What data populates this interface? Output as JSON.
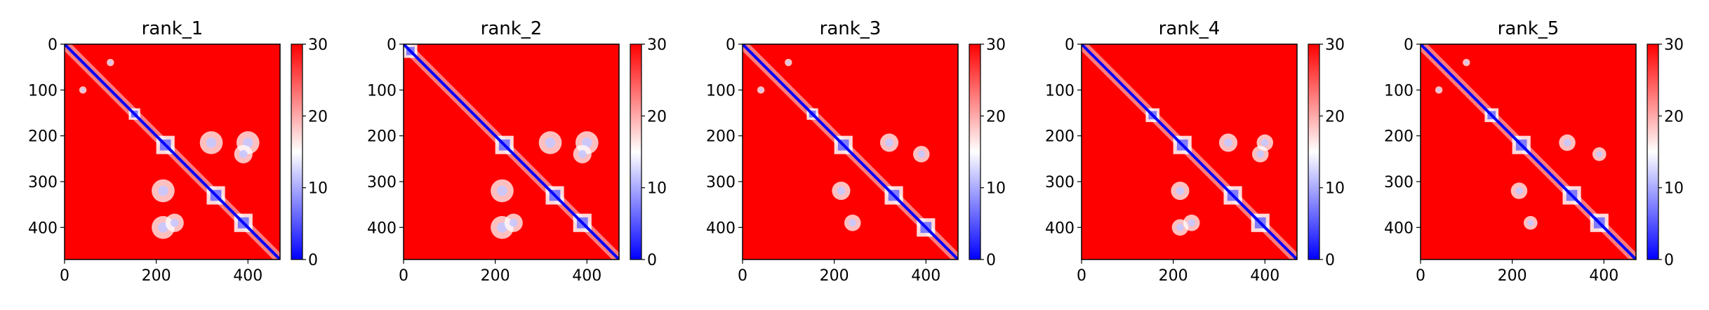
{
  "chart_data": [
    {
      "type": "heatmap",
      "title": "rank_1",
      "xlabel": "",
      "ylabel": "",
      "xlim": [
        0,
        470
      ],
      "ylim": [
        470,
        0
      ],
      "xticks": [
        0,
        200,
        400
      ],
      "yticks": [
        0,
        100,
        200,
        300,
        400
      ],
      "colorbar": {
        "range": [
          0,
          30
        ],
        "ticks": [
          0,
          10,
          20,
          30
        ],
        "colormap": "bwr"
      },
      "domains": [
        [
          140,
          165
        ],
        [
          200,
          240
        ],
        [
          310,
          350
        ],
        [
          370,
          410
        ]
      ],
      "offdiag_blocks": [
        [
          40,
          100,
          8
        ],
        [
          215,
          400,
          25
        ],
        [
          215,
          320,
          25
        ],
        [
          240,
          390,
          20
        ]
      ]
    },
    {
      "type": "heatmap",
      "title": "rank_2",
      "xlabel": "",
      "ylabel": "",
      "xlim": [
        0,
        470
      ],
      "ylim": [
        470,
        0
      ],
      "xticks": [
        0,
        200,
        400
      ],
      "yticks": [
        0,
        100,
        200,
        300,
        400
      ],
      "colorbar": {
        "range": [
          0,
          30
        ],
        "ticks": [
          0,
          10,
          20,
          30
        ],
        "colormap": "bwr"
      },
      "domains": [
        [
          0,
          30
        ],
        [
          200,
          240
        ],
        [
          310,
          350
        ],
        [
          370,
          410
        ]
      ],
      "offdiag_blocks": [
        [
          215,
          400,
          25
        ],
        [
          215,
          320,
          25
        ],
        [
          240,
          390,
          20
        ]
      ]
    },
    {
      "type": "heatmap",
      "title": "rank_3",
      "xlabel": "",
      "ylabel": "",
      "xlim": [
        0,
        470
      ],
      "ylim": [
        470,
        0
      ],
      "xticks": [
        0,
        200,
        400
      ],
      "yticks": [
        0,
        100,
        200,
        300,
        400
      ],
      "colorbar": {
        "range": [
          0,
          30
        ],
        "ticks": [
          0,
          10,
          20,
          30
        ],
        "colormap": "bwr"
      },
      "domains": [
        [
          140,
          165
        ],
        [
          200,
          240
        ],
        [
          310,
          350
        ],
        [
          380,
          420
        ]
      ],
      "offdiag_blocks": [
        [
          40,
          100,
          8
        ],
        [
          215,
          320,
          20
        ],
        [
          240,
          390,
          18
        ]
      ]
    },
    {
      "type": "heatmap",
      "title": "rank_4",
      "xlabel": "",
      "ylabel": "",
      "xlim": [
        0,
        470
      ],
      "ylim": [
        470,
        0
      ],
      "xticks": [
        0,
        200,
        400
      ],
      "yticks": [
        0,
        100,
        200,
        300,
        400
      ],
      "colorbar": {
        "range": [
          0,
          30
        ],
        "ticks": [
          0,
          10,
          20,
          30
        ],
        "colormap": "bwr"
      },
      "domains": [
        [
          140,
          170
        ],
        [
          200,
          240
        ],
        [
          310,
          350
        ],
        [
          370,
          410
        ]
      ],
      "offdiag_blocks": [
        [
          215,
          320,
          20
        ],
        [
          240,
          390,
          18
        ],
        [
          215,
          400,
          18
        ]
      ]
    },
    {
      "type": "heatmap",
      "title": "rank_5",
      "xlabel": "",
      "ylabel": "",
      "xlim": [
        0,
        470
      ],
      "ylim": [
        470,
        0
      ],
      "xticks": [
        0,
        200,
        400
      ],
      "yticks": [
        0,
        100,
        200,
        300,
        400
      ],
      "colorbar": {
        "range": [
          0,
          30
        ],
        "ticks": [
          0,
          10,
          20,
          30
        ],
        "colormap": "bwr"
      },
      "domains": [
        [
          140,
          170
        ],
        [
          200,
          240
        ],
        [
          310,
          350
        ],
        [
          370,
          410
        ]
      ],
      "offdiag_blocks": [
        [
          40,
          100,
          8
        ],
        [
          215,
          320,
          18
        ],
        [
          240,
          390,
          15
        ]
      ]
    }
  ]
}
